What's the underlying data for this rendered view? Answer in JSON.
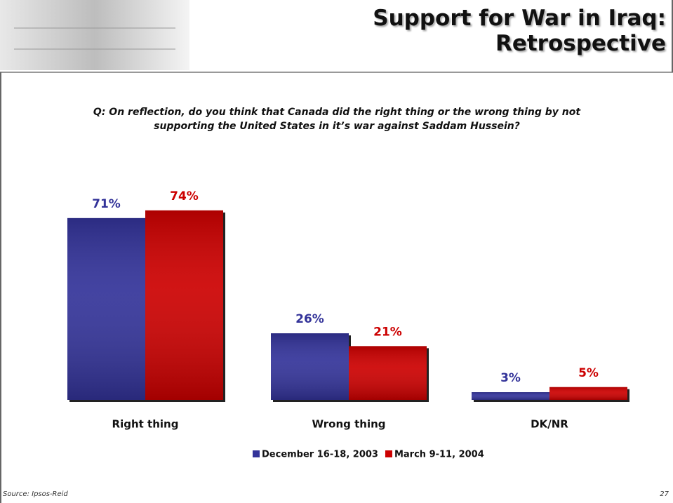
{
  "chart_data": {
    "type": "bar",
    "title": "Support for War in Iraq: Retrospective",
    "subtitle": "Q: On reflection, do you think that Canada did the right thing or the wrong thing by not supporting the United States in it’s war against Saddam Hussein?",
    "categories": [
      "Right thing",
      "Wrong thing",
      "DK/NR"
    ],
    "series": [
      {
        "name": "December 16-18, 2003",
        "color": "#333399",
        "values": [
          71,
          26,
          3
        ],
        "value_labels": [
          "71%",
          "26%",
          "3%"
        ]
      },
      {
        "name": "March 9-11, 2004",
        "color": "#cc0000",
        "values": [
          74,
          21,
          5
        ],
        "value_labels": [
          "74%",
          "21%",
          "5%"
        ]
      }
    ],
    "source": "Source: Ipsos-Reid",
    "page_number": 27
  }
}
